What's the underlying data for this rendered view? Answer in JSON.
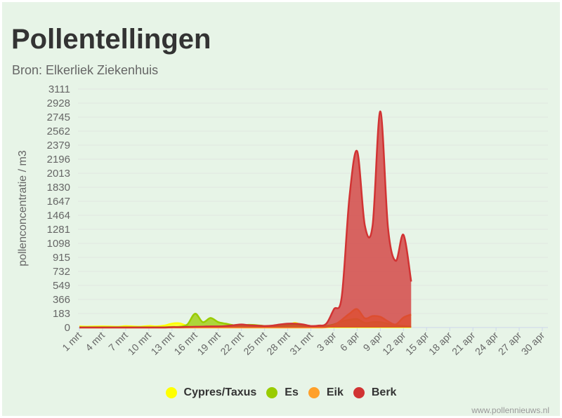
{
  "title": "Pollentellingen",
  "subtitle": "Bron: Elkerliek Ziekenhuis",
  "credit": "www.pollennieuws.nl",
  "chart_data": {
    "type": "area",
    "title": "Pollentellingen",
    "subtitle": "Bron: Elkerliek Ziekenhuis",
    "ylabel": "pollenconcentratie / m3",
    "xlabel": "",
    "ylim": [
      0,
      3111
    ],
    "yticks": [
      0,
      183,
      366,
      549,
      732,
      915,
      1098,
      1281,
      1464,
      1647,
      1830,
      2013,
      2196,
      2379,
      2562,
      2745,
      2928,
      3111
    ],
    "xticks": [
      "1 mrt",
      "4 mrt",
      "7 mrt",
      "10 mrt",
      "13 mrt",
      "16 mrt",
      "19 mrt",
      "22 mrt",
      "25 mrt",
      "28 mrt",
      "31 mrt",
      "3 apr",
      "6 apr",
      "9 apr",
      "12 apr",
      "15 apr",
      "18 apr",
      "21 apr",
      "24 apr",
      "27 apr",
      "30 apr"
    ],
    "x_range": [
      "1 mrt",
      "30 apr"
    ],
    "x_start": "1 mrt",
    "x_step": "1 dag",
    "grid": true,
    "legend": "bottom",
    "series": [
      {
        "name": "Cypres/Taxus",
        "color": "#ffff00",
        "values": [
          15,
          12,
          14,
          15,
          13,
          10,
          18,
          14,
          12,
          20,
          15,
          25,
          50,
          55,
          20,
          5,
          5,
          10,
          5,
          5,
          5,
          5,
          5,
          5,
          5,
          5,
          10,
          30,
          60,
          20,
          5,
          5,
          5,
          5,
          5,
          5,
          5,
          5,
          5,
          5,
          5,
          5,
          5,
          5
        ]
      },
      {
        "name": "Es",
        "color": "#99cc00",
        "values": [
          5,
          5,
          5,
          5,
          5,
          5,
          5,
          5,
          5,
          5,
          5,
          5,
          8,
          10,
          40,
          180,
          70,
          125,
          70,
          50,
          30,
          30,
          35,
          30,
          20,
          15,
          20,
          30,
          40,
          20,
          10,
          15,
          20,
          40,
          80,
          100,
          110,
          60,
          70,
          70,
          50,
          30,
          20,
          10
        ]
      },
      {
        "name": "Eik",
        "color": "#ffa02a",
        "values": [
          0,
          0,
          0,
          0,
          0,
          0,
          0,
          0,
          0,
          0,
          0,
          0,
          0,
          0,
          0,
          0,
          0,
          0,
          0,
          0,
          0,
          0,
          0,
          0,
          0,
          0,
          0,
          0,
          0,
          0,
          0,
          0,
          5,
          30,
          100,
          180,
          240,
          120,
          150,
          140,
          80,
          40,
          130,
          170
        ]
      },
      {
        "name": "Berk",
        "color": "#d13333",
        "values": [
          0,
          0,
          0,
          0,
          0,
          0,
          0,
          0,
          0,
          0,
          0,
          0,
          5,
          5,
          8,
          10,
          12,
          15,
          15,
          20,
          30,
          40,
          30,
          25,
          20,
          25,
          40,
          50,
          50,
          40,
          20,
          25,
          50,
          240,
          400,
          1700,
          2300,
          1330,
          1330,
          2820,
          1300,
          870,
          1210,
          600
        ]
      }
    ]
  }
}
